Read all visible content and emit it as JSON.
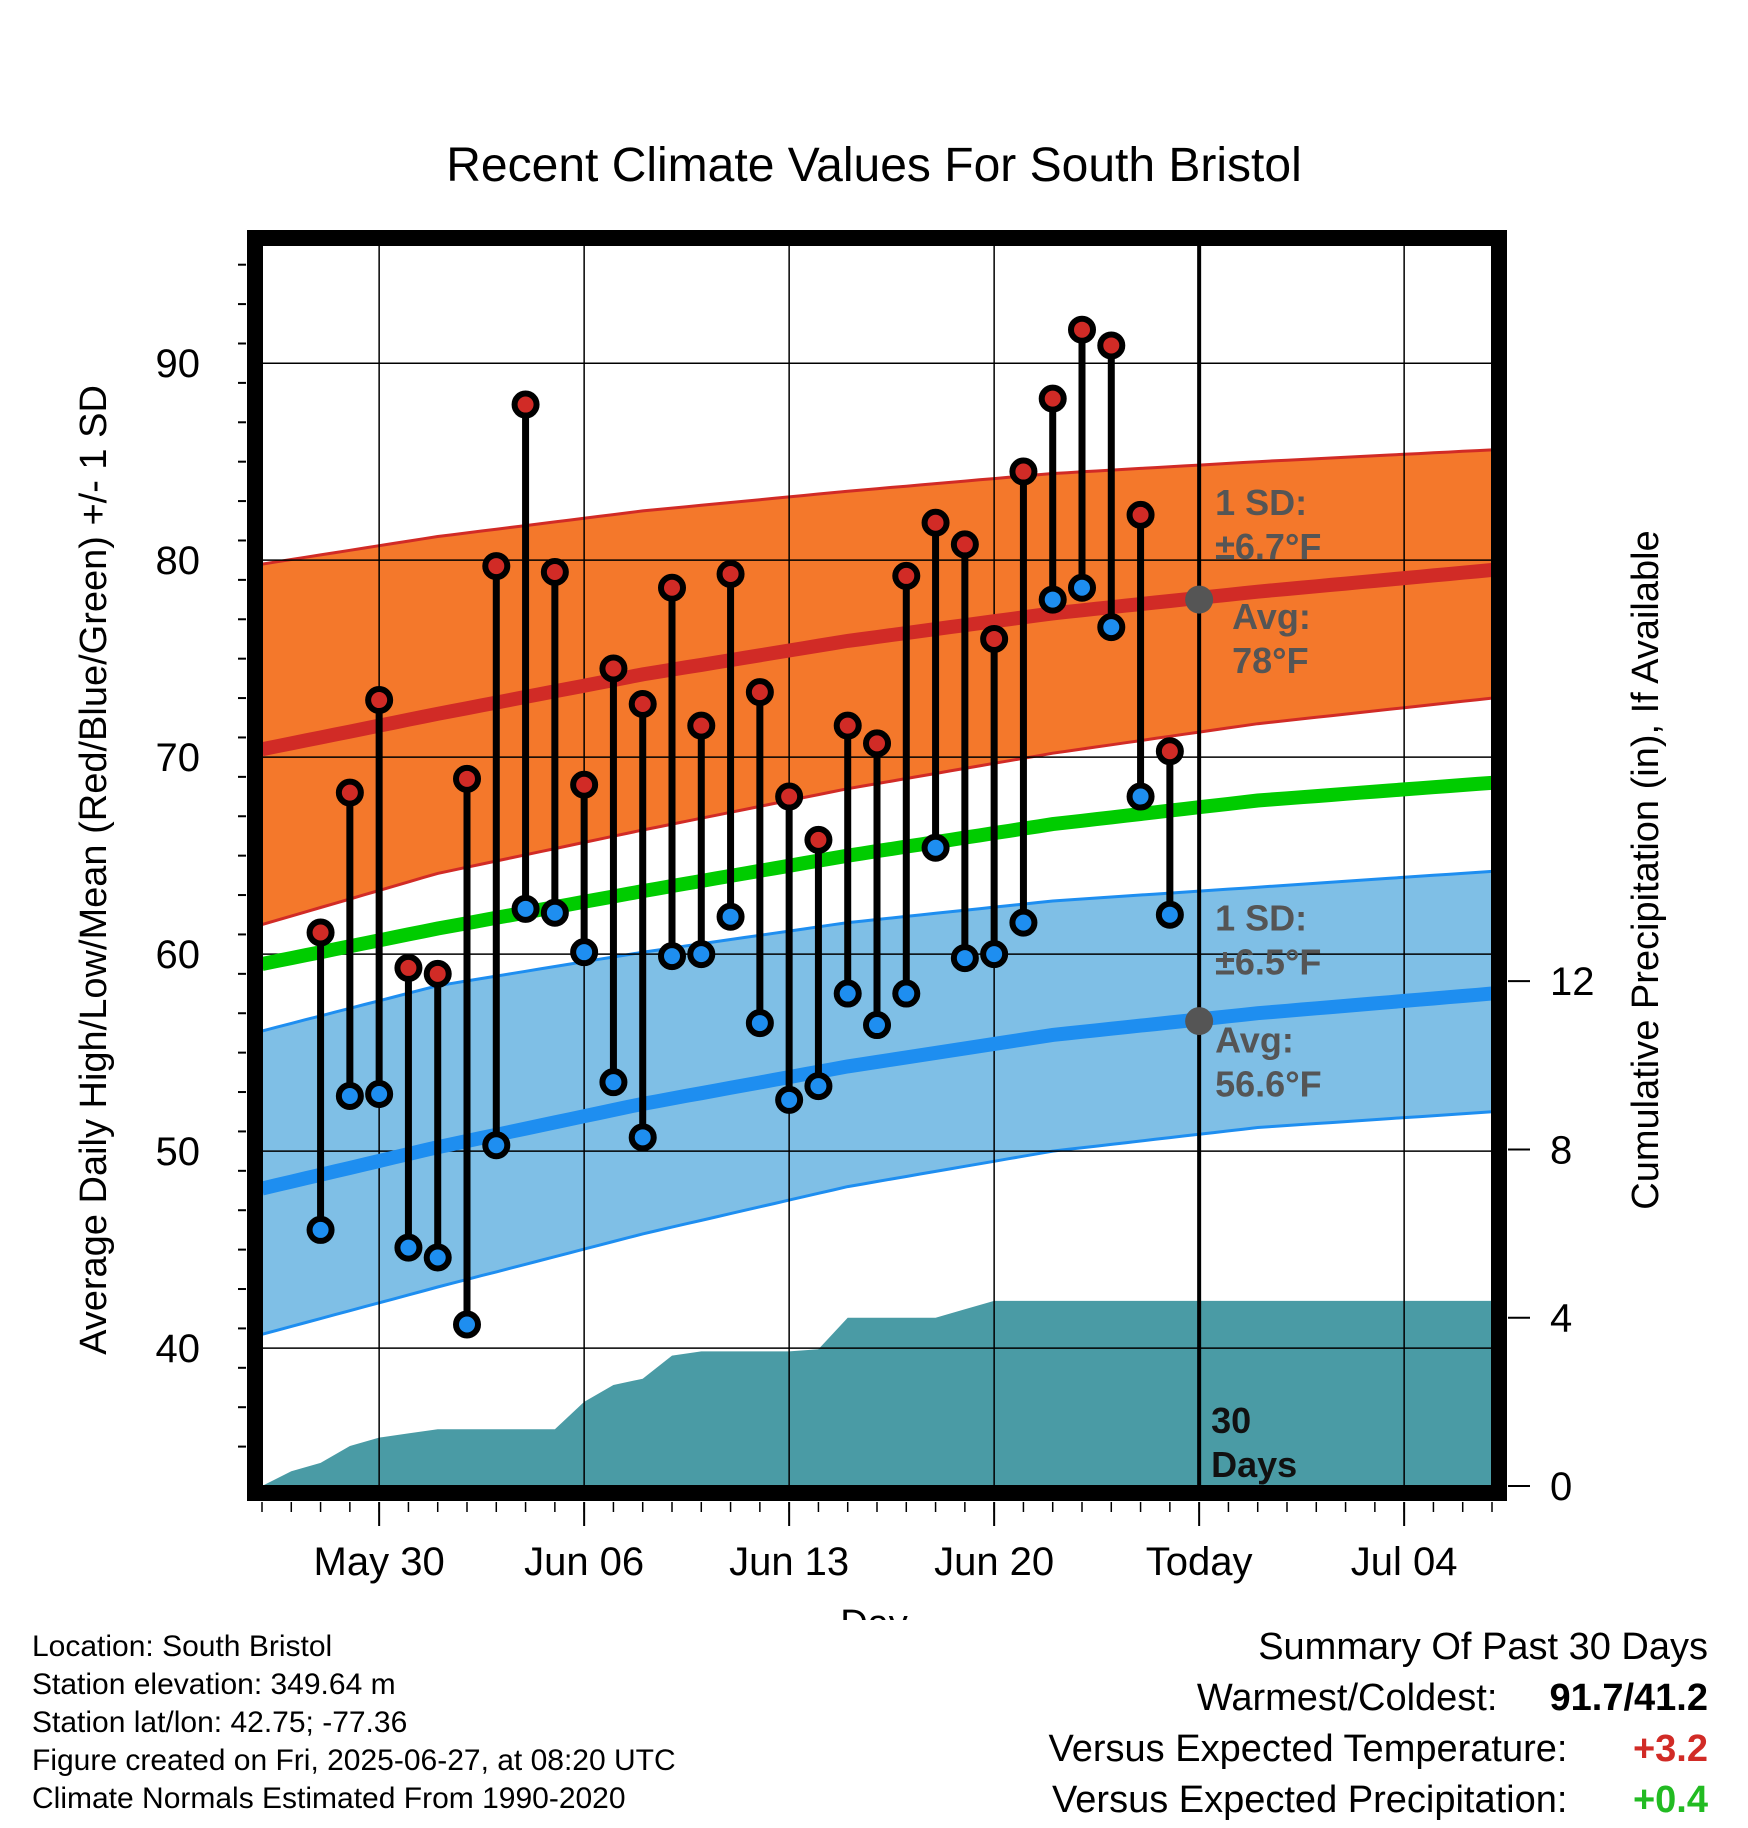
{
  "chart_data": {
    "type": "line",
    "title": "Recent Climate Values For South Bristol",
    "xlabel": "Day",
    "ylabel": "Average Daily High/Low/Mean (Red/Blue/Green) +/- 1 SD",
    "y2label": "Cumulative Precipitation (in), If Available",
    "ylim": [
      33,
      96
    ],
    "y2lim": [
      0,
      29.5
    ],
    "yticks": [
      40,
      50,
      60,
      70,
      80,
      90
    ],
    "y2ticks": [
      0,
      4,
      8,
      12
    ],
    "xlim": [
      "2025-05-26",
      "2025-07-07"
    ],
    "xticks": [
      {
        "date": "2025-05-30",
        "label": "May 30"
      },
      {
        "date": "2025-06-06",
        "label": "Jun 06"
      },
      {
        "date": "2025-06-13",
        "label": "Jun 13"
      },
      {
        "date": "2025-06-20",
        "label": "Jun 20"
      },
      {
        "date": "2025-06-27",
        "label": "Today"
      },
      {
        "date": "2025-07-04",
        "label": "Jul 04"
      }
    ],
    "grid": true,
    "today": "2025-06-27",
    "today_label": [
      "30",
      "Days"
    ],
    "daily_observations": {
      "dates": [
        "2025-05-28",
        "2025-05-29",
        "2025-05-30",
        "2025-05-31",
        "2025-06-01",
        "2025-06-02",
        "2025-06-03",
        "2025-06-04",
        "2025-06-05",
        "2025-06-06",
        "2025-06-07",
        "2025-06-08",
        "2025-06-09",
        "2025-06-10",
        "2025-06-11",
        "2025-06-12",
        "2025-06-13",
        "2025-06-14",
        "2025-06-15",
        "2025-06-16",
        "2025-06-17",
        "2025-06-18",
        "2025-06-19",
        "2025-06-20",
        "2025-06-21",
        "2025-06-22",
        "2025-06-23",
        "2025-06-24",
        "2025-06-25",
        "2025-06-26"
      ],
      "high": [
        61.1,
        68.2,
        72.9,
        59.3,
        59.0,
        68.9,
        79.7,
        87.9,
        79.4,
        68.6,
        74.5,
        72.7,
        78.6,
        71.6,
        79.3,
        73.3,
        68.0,
        65.8,
        71.6,
        70.7,
        79.2,
        81.9,
        80.8,
        76.0,
        84.5,
        88.2,
        91.7,
        90.9,
        82.3,
        70.3
      ],
      "low": [
        46.0,
        52.8,
        52.9,
        45.1,
        44.6,
        41.2,
        50.3,
        62.3,
        62.1,
        60.1,
        53.5,
        50.7,
        59.9,
        60.0,
        61.9,
        56.5,
        52.6,
        53.3,
        58.0,
        56.4,
        58.0,
        65.4,
        59.8,
        60.0,
        61.6,
        78.0,
        78.6,
        76.6,
        68.0,
        62.0
      ]
    },
    "normals": {
      "dates": [
        "2025-05-26",
        "2025-06-01",
        "2025-06-08",
        "2025-06-15",
        "2025-06-22",
        "2025-06-29",
        "2025-07-07"
      ],
      "avg_high": [
        70.4,
        72.2,
        74.2,
        75.9,
        77.3,
        78.4,
        79.5
      ],
      "avg_high_sd_upper": [
        79.8,
        81.2,
        82.5,
        83.5,
        84.4,
        85.0,
        85.6
      ],
      "avg_high_sd_lower": [
        61.5,
        64.1,
        66.3,
        68.4,
        70.2,
        71.7,
        73.0
      ],
      "avg_mean": [
        59.5,
        61.3,
        63.2,
        65.0,
        66.6,
        67.8,
        68.7
      ],
      "avg_low": [
        48.1,
        50.2,
        52.4,
        54.3,
        55.9,
        57.0,
        58.0
      ],
      "avg_low_sd_upper": [
        56.1,
        58.4,
        60.1,
        61.6,
        62.7,
        63.4,
        64.2
      ],
      "avg_low_sd_lower": [
        40.7,
        43.1,
        45.8,
        48.2,
        50.0,
        51.2,
        52.0
      ]
    },
    "annotations": {
      "high_sd": [
        "1 SD:",
        "±6.7°F"
      ],
      "high_avg": [
        "Avg:",
        "78°F"
      ],
      "low_sd": [
        "1 SD:",
        "±6.5°F"
      ],
      "low_avg": [
        "Avg:",
        "56.6°F"
      ],
      "today_avg_high": 78.0,
      "today_avg_low": 56.6
    },
    "precipitation": {
      "dates": [
        "2025-05-26",
        "2025-05-27",
        "2025-05-28",
        "2025-05-29",
        "2025-05-30",
        "2025-05-31",
        "2025-06-01",
        "2025-06-02",
        "2025-06-03",
        "2025-06-04",
        "2025-06-05",
        "2025-06-06",
        "2025-06-07",
        "2025-06-08",
        "2025-06-09",
        "2025-06-10",
        "2025-06-11",
        "2025-06-12",
        "2025-06-13",
        "2025-06-14",
        "2025-06-15",
        "2025-06-16",
        "2025-06-17",
        "2025-06-18",
        "2025-06-19",
        "2025-06-20",
        "2025-06-21",
        "2025-06-22",
        "2025-06-23",
        "2025-06-24",
        "2025-06-25",
        "2025-06-26",
        "2025-06-27",
        "2025-06-28",
        "2025-06-29",
        "2025-06-30",
        "2025-07-01",
        "2025-07-02",
        "2025-07-03",
        "2025-07-04",
        "2025-07-05",
        "2025-07-06",
        "2025-07-07"
      ],
      "cumulative": [
        0,
        0.35,
        0.55,
        0.95,
        1.15,
        1.25,
        1.35,
        1.35,
        1.35,
        1.35,
        1.35,
        2.0,
        2.4,
        2.55,
        3.1,
        3.2,
        3.2,
        3.2,
        3.2,
        3.25,
        4.0,
        4.0,
        4.0,
        4.0,
        4.2,
        4.4,
        4.4,
        4.4,
        4.4,
        4.4,
        4.4,
        4.4,
        4.4,
        4.4,
        4.4,
        4.4,
        4.4,
        4.4,
        4.4,
        4.4,
        4.4,
        4.4,
        4.4
      ]
    },
    "colors": {
      "high_band": "#F4782B",
      "high_line": "#D12B26",
      "low_band": "#7FBFE6",
      "low_line": "#1E8EF0",
      "mean_line": "#00CC00",
      "precip": "#4A9BA5",
      "high_dot": "#D12B26",
      "low_dot": "#1E8EF0",
      "avg_dot": "#555555"
    }
  },
  "footer": {
    "location": "Location: South Bristol",
    "elevation": "Station elevation: 349.64 m",
    "latlon": "Station lat/lon: 42.75; -77.36",
    "created": "Figure created on Fri, 2025-06-27, at 08:20 UTC",
    "normals": "Climate Normals Estimated From 1990-2020"
  },
  "summary": {
    "heading": "Summary Of Past 30 Days",
    "warmest_coldest_label": "Warmest/Coldest:",
    "warmest_coldest_value": "91.7/41.2",
    "temp_label": "Versus Expected Temperature:",
    "temp_value": "+3.2",
    "temp_color": "#D12B26",
    "precip_label": "Versus Expected Precipitation:",
    "precip_value": "+0.4",
    "precip_color": "#22BB22"
  }
}
